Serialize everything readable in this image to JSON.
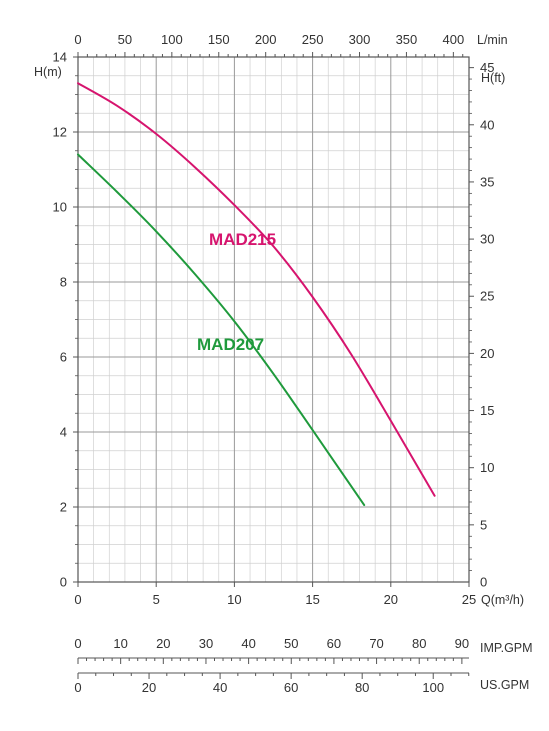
{
  "chart_data": {
    "type": "line",
    "x": {
      "label": "Q(m³/h)",
      "range": [
        0,
        25
      ],
      "ticks": [
        0,
        5,
        10,
        15,
        20,
        25
      ]
    },
    "x_top": {
      "label": "L/min",
      "range": [
        0,
        416.67
      ],
      "ticks": [
        0,
        50,
        100,
        150,
        200,
        250,
        300,
        350,
        400
      ]
    },
    "y_left": {
      "label": "H(m)",
      "range": [
        0,
        14
      ],
      "ticks": [
        0,
        2,
        4,
        6,
        8,
        10,
        12,
        14
      ]
    },
    "y_right": {
      "label": "H(ft)",
      "range": [
        0,
        45.93
      ],
      "ticks": [
        0,
        5,
        10,
        15,
        20,
        25,
        30,
        35,
        40,
        45
      ]
    },
    "imp_gpm": {
      "label": "IMP.GPM",
      "range": [
        0,
        91.67
      ],
      "ticks": [
        0,
        10,
        20,
        30,
        40,
        50,
        60,
        70,
        80,
        90
      ]
    },
    "us_gpm": {
      "label": "US.GPM",
      "range": [
        0,
        110.07
      ],
      "ticks": [
        0,
        20,
        40,
        60,
        80,
        100
      ]
    },
    "grid": true,
    "series": [
      {
        "name": "MAD215",
        "color": "#d6146e",
        "x": [
          0,
          2.5,
          5,
          7.5,
          10,
          12.5,
          15,
          17.5,
          20,
          22.8
        ],
        "y": [
          13.3,
          12.7,
          11.95,
          11.05,
          10.05,
          8.95,
          7.6,
          6.05,
          4.3,
          2.3
        ]
      },
      {
        "name": "MAD207",
        "color": "#1f9a3c",
        "x": [
          0,
          2.5,
          5,
          7.5,
          10,
          12.5,
          15,
          18.3
        ],
        "y": [
          11.4,
          10.4,
          9.35,
          8.2,
          6.95,
          5.55,
          4.05,
          2.05
        ]
      }
    ]
  }
}
